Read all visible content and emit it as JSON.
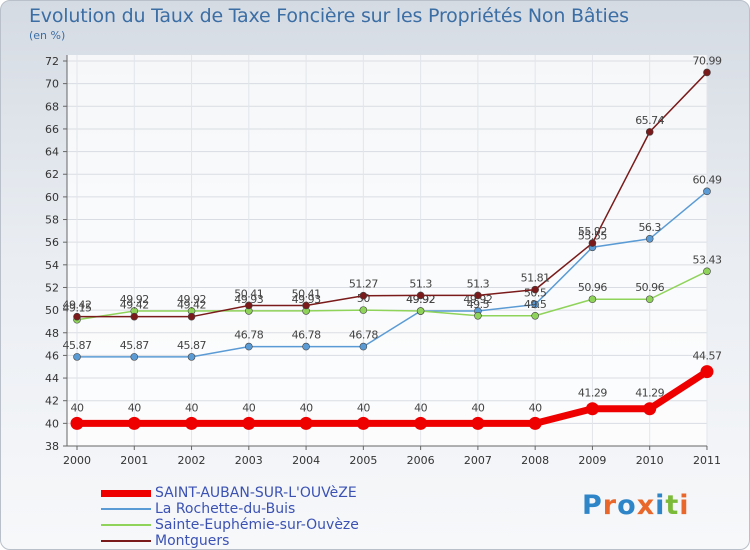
{
  "title": "Evolution du Taux de Taxe Foncière sur les Propriétés Non Bâties",
  "unit_label": "(en %)",
  "brand": {
    "text": "Proxiti",
    "letter_colors": [
      "#2e86c8",
      "#e9672a",
      "#2e86c8",
      "#e9672a",
      "#2e86c8",
      "#7cba3a",
      "#e9672a"
    ]
  },
  "chart_data": {
    "type": "line",
    "title": "Evolution du Taux de Taxe Foncière sur les Propriétés Non Bâties",
    "ylabel": "(en %)",
    "xlabel": "",
    "categories": [
      "2000",
      "2001",
      "2002",
      "2003",
      "2004",
      "2005",
      "2006",
      "2007",
      "2008",
      "2009",
      "2010",
      "2011"
    ],
    "ylim": [
      38,
      72
    ],
    "yticks": [
      38,
      40,
      42,
      44,
      46,
      48,
      50,
      52,
      54,
      56,
      58,
      60,
      62,
      64,
      66,
      68,
      70,
      72
    ],
    "grid": true,
    "legend_position": "bottom-left",
    "series": [
      {
        "name": "SAINT-AUBAN-SUR-L'OUVèZE",
        "color": "#ee0000",
        "emphasis": true,
        "values": [
          40,
          40,
          40,
          40,
          40,
          40,
          40,
          40,
          40,
          41.29,
          41.29,
          44.57
        ],
        "labels": [
          "40",
          "40",
          "40",
          "40",
          "40",
          "40",
          "40",
          "40",
          "40",
          "41.29",
          "41.29",
          "44.57"
        ]
      },
      {
        "name": "La Rochette-du-Buis",
        "color": "#5b9bd5",
        "values": [
          45.87,
          45.87,
          45.87,
          46.78,
          46.78,
          46.78,
          49.92,
          49.92,
          50.5,
          55.55,
          56.3,
          60.49
        ],
        "labels": [
          "45.87",
          "45.87",
          "45.87",
          "46.78",
          "46.78",
          "46.78",
          "49.92",
          "49.92",
          "50.5",
          "55.55",
          "56.3",
          "60.49"
        ]
      },
      {
        "name": "Sainte-Euphémie-sur-Ouvèze",
        "color": "#8fd35a",
        "values": [
          49.15,
          49.92,
          49.92,
          49.93,
          49.93,
          50,
          49.92,
          49.5,
          49.5,
          50.96,
          50.96,
          53.43
        ],
        "labels": [
          "49.15",
          "49.92",
          "49.92",
          "49.93",
          "49.93",
          "50",
          "49.92",
          "49.5",
          "49.5",
          "50.96",
          "50.96",
          "53.43"
        ]
      },
      {
        "name": "Montguers",
        "color": "#7a1a1a",
        "values": [
          49.42,
          49.42,
          49.42,
          50.41,
          50.41,
          51.27,
          51.3,
          51.3,
          51.81,
          55.92,
          65.74,
          70.99
        ],
        "labels": [
          "49.42",
          "49.42",
          "49.42",
          "50.41",
          "50.41",
          "51.27",
          "51.3",
          "51.3",
          "51.81",
          "55.92",
          "65.74",
          "70.99"
        ]
      }
    ]
  }
}
